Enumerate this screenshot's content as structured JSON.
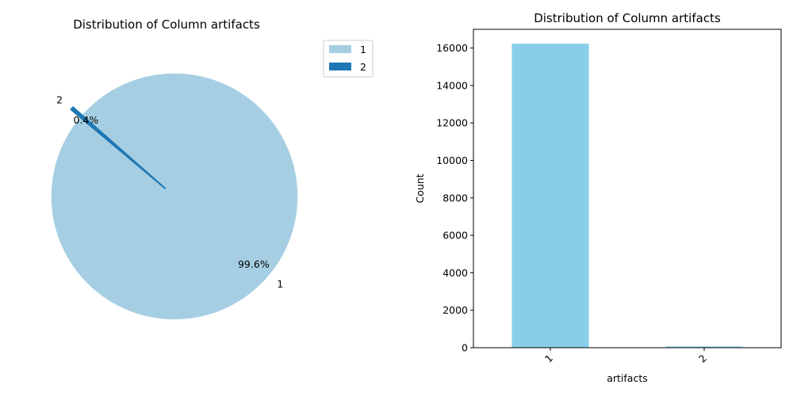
{
  "chart_data": [
    {
      "type": "pie",
      "title": "Distribution of Column artifacts",
      "categories": [
        "1",
        "2"
      ],
      "values": [
        16230,
        65
      ],
      "percent_labels": [
        "99.6%",
        "0.4%"
      ],
      "colors": [
        "#a6cee3",
        "#1f78b4"
      ],
      "explode": [
        0,
        0.1
      ],
      "legend": {
        "entries": [
          "1",
          "2"
        ],
        "placement": "top-right"
      }
    },
    {
      "type": "bar",
      "title": "Distribution of Column artifacts",
      "categories": [
        "1",
        "2"
      ],
      "values": [
        16230,
        65
      ],
      "xlabel": "artifacts",
      "ylabel": "Count",
      "ylim": [
        0,
        17000
      ],
      "yticks": [
        0,
        2000,
        4000,
        6000,
        8000,
        10000,
        12000,
        14000,
        16000
      ],
      "bar_color": "#87ceeb",
      "grid": false
    }
  ]
}
